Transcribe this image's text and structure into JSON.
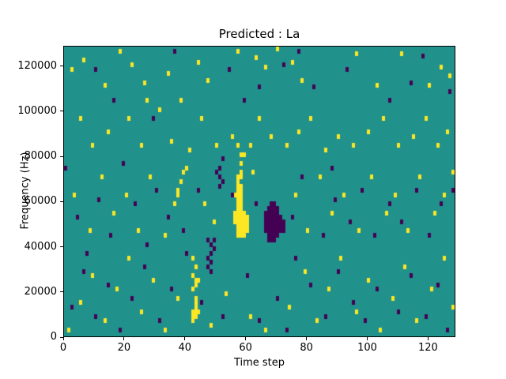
{
  "figure": {
    "title": "Predicted : La",
    "xlabel": "Time step",
    "ylabel": "Frequency (Hz)"
  },
  "chart_data": {
    "type": "heatmap",
    "title": "Predicted : La",
    "xlabel": "Time step",
    "ylabel": "Frequency (Hz)",
    "xlim": [
      0,
      129
    ],
    "ylim": [
      0,
      129000
    ],
    "xticks": [
      0,
      20,
      40,
      60,
      80,
      100,
      120
    ],
    "yticks": [
      0,
      20000,
      40000,
      60000,
      80000,
      100000,
      120000
    ],
    "grid": false,
    "legend": "none",
    "cell": {
      "x_size": 1,
      "y_size": 2000
    },
    "colors": {
      "background": "#21918c",
      "high": "#fde725",
      "low": "#440154",
      "axis": "#000000"
    },
    "high_cells": [
      [
        56,
        50000
      ],
      [
        56,
        52000
      ],
      [
        56,
        54000
      ],
      [
        56,
        62000
      ],
      [
        57,
        44000
      ],
      [
        57,
        46000
      ],
      [
        57,
        48000
      ],
      [
        57,
        50000
      ],
      [
        57,
        52000
      ],
      [
        57,
        54000
      ],
      [
        57,
        56000
      ],
      [
        57,
        58000
      ],
      [
        57,
        60000
      ],
      [
        57,
        62000
      ],
      [
        57,
        64000
      ],
      [
        57,
        66000
      ],
      [
        57,
        68000
      ],
      [
        57,
        70000
      ],
      [
        57,
        84000
      ],
      [
        58,
        44000
      ],
      [
        58,
        46000
      ],
      [
        58,
        48000
      ],
      [
        58,
        50000
      ],
      [
        58,
        52000
      ],
      [
        58,
        54000
      ],
      [
        58,
        56000
      ],
      [
        58,
        58000
      ],
      [
        58,
        60000
      ],
      [
        58,
        62000
      ],
      [
        58,
        64000
      ],
      [
        58,
        66000
      ],
      [
        58,
        70000
      ],
      [
        58,
        72000
      ],
      [
        58,
        76000
      ],
      [
        58,
        80000
      ],
      [
        59,
        44000
      ],
      [
        59,
        46000
      ],
      [
        59,
        48000
      ],
      [
        59,
        50000
      ],
      [
        59,
        52000
      ],
      [
        59,
        54000
      ],
      [
        59,
        80000
      ],
      [
        60,
        46000
      ],
      [
        60,
        48000
      ],
      [
        60,
        50000
      ],
      [
        60,
        52000
      ],
      [
        42,
        6000
      ],
      [
        42,
        8000
      ],
      [
        42,
        10000
      ],
      [
        42,
        20000
      ],
      [
        42,
        26000
      ],
      [
        42,
        34000
      ],
      [
        43,
        8000
      ],
      [
        43,
        10000
      ],
      [
        43,
        12000
      ],
      [
        43,
        14000
      ],
      [
        43,
        16000
      ],
      [
        43,
        22000
      ],
      [
        43,
        24000
      ],
      [
        43,
        30000
      ],
      [
        44,
        10000
      ],
      [
        44,
        24000
      ],
      [
        36,
        58000
      ],
      [
        37,
        62000
      ],
      [
        37,
        64000
      ],
      [
        38,
        68000
      ],
      [
        39,
        72000
      ],
      [
        40,
        74000
      ],
      [
        2,
        118000
      ],
      [
        6,
        122000
      ],
      [
        13,
        111000
      ],
      [
        18,
        126000
      ],
      [
        22,
        120000
      ],
      [
        26,
        112000
      ],
      [
        34,
        116000
      ],
      [
        38,
        104000
      ],
      [
        44,
        121000
      ],
      [
        47,
        113000
      ],
      [
        57,
        126000
      ],
      [
        63,
        123000
      ],
      [
        66,
        119000
      ],
      [
        70,
        127000
      ],
      [
        75,
        121000
      ],
      [
        78,
        113000
      ],
      [
        96,
        125000
      ],
      [
        103,
        111000
      ],
      [
        111,
        125000
      ],
      [
        120,
        111000
      ],
      [
        124,
        119000
      ],
      [
        127,
        115000
      ],
      [
        5,
        96000
      ],
      [
        9,
        84000
      ],
      [
        14,
        90000
      ],
      [
        21,
        96000
      ],
      [
        25,
        84000
      ],
      [
        27,
        104000
      ],
      [
        31,
        100000
      ],
      [
        35,
        86000
      ],
      [
        41,
        82000
      ],
      [
        45,
        96000
      ],
      [
        50,
        84000
      ],
      [
        55,
        88000
      ],
      [
        61,
        84000
      ],
      [
        64,
        96000
      ],
      [
        68,
        88000
      ],
      [
        73,
        84000
      ],
      [
        77,
        90000
      ],
      [
        81,
        96000
      ],
      [
        86,
        82000
      ],
      [
        90,
        88000
      ],
      [
        95,
        84000
      ],
      [
        100,
        90000
      ],
      [
        105,
        96000
      ],
      [
        110,
        84000
      ],
      [
        115,
        88000
      ],
      [
        119,
        96000
      ],
      [
        123,
        84000
      ],
      [
        126,
        90000
      ],
      [
        3,
        62000
      ],
      [
        8,
        46000
      ],
      [
        12,
        70000
      ],
      [
        16,
        54000
      ],
      [
        20,
        62000
      ],
      [
        24,
        46000
      ],
      [
        28,
        70000
      ],
      [
        33,
        44000
      ],
      [
        46,
        58000
      ],
      [
        49,
        50000
      ],
      [
        62,
        72000
      ],
      [
        76,
        62000
      ],
      [
        80,
        46000
      ],
      [
        84,
        70000
      ],
      [
        88,
        54000
      ],
      [
        92,
        62000
      ],
      [
        97,
        46000
      ],
      [
        101,
        70000
      ],
      [
        106,
        54000
      ],
      [
        109,
        62000
      ],
      [
        113,
        46000
      ],
      [
        117,
        70000
      ],
      [
        122,
        54000
      ],
      [
        125,
        62000
      ],
      [
        128,
        72000
      ],
      [
        1,
        2000
      ],
      [
        5,
        14000
      ],
      [
        9,
        26000
      ],
      [
        13,
        6000
      ],
      [
        17,
        20000
      ],
      [
        21,
        34000
      ],
      [
        25,
        10000
      ],
      [
        29,
        24000
      ],
      [
        33,
        2000
      ],
      [
        37,
        16000
      ],
      [
        48,
        4000
      ],
      [
        53,
        18000
      ],
      [
        61,
        8000
      ],
      [
        66,
        2000
      ],
      [
        74,
        12000
      ],
      [
        79,
        28000
      ],
      [
        83,
        6000
      ],
      [
        87,
        20000
      ],
      [
        91,
        34000
      ],
      [
        96,
        10000
      ],
      [
        100,
        24000
      ],
      [
        104,
        2000
      ],
      [
        108,
        16000
      ],
      [
        112,
        30000
      ],
      [
        116,
        6000
      ],
      [
        121,
        20000
      ],
      [
        125,
        34000
      ],
      [
        128,
        12000
      ]
    ],
    "low_cells": [
      [
        66,
        46000
      ],
      [
        66,
        48000
      ],
      [
        66,
        50000
      ],
      [
        66,
        52000
      ],
      [
        66,
        54000
      ],
      [
        67,
        42000
      ],
      [
        67,
        44000
      ],
      [
        67,
        46000
      ],
      [
        67,
        48000
      ],
      [
        67,
        50000
      ],
      [
        67,
        52000
      ],
      [
        67,
        54000
      ],
      [
        67,
        56000
      ],
      [
        68,
        42000
      ],
      [
        68,
        44000
      ],
      [
        68,
        46000
      ],
      [
        68,
        48000
      ],
      [
        68,
        50000
      ],
      [
        68,
        52000
      ],
      [
        68,
        54000
      ],
      [
        68,
        56000
      ],
      [
        68,
        58000
      ],
      [
        69,
        42000
      ],
      [
        69,
        44000
      ],
      [
        69,
        46000
      ],
      [
        69,
        48000
      ],
      [
        69,
        50000
      ],
      [
        69,
        52000
      ],
      [
        69,
        54000
      ],
      [
        69,
        56000
      ],
      [
        69,
        58000
      ],
      [
        70,
        44000
      ],
      [
        70,
        46000
      ],
      [
        70,
        48000
      ],
      [
        70,
        50000
      ],
      [
        70,
        52000
      ],
      [
        70,
        54000
      ],
      [
        70,
        56000
      ],
      [
        71,
        46000
      ],
      [
        71,
        48000
      ],
      [
        71,
        50000
      ],
      [
        71,
        52000
      ],
      [
        72,
        46000
      ],
      [
        72,
        48000
      ],
      [
        72,
        50000
      ],
      [
        47,
        30000
      ],
      [
        47,
        34000
      ],
      [
        47,
        42000
      ],
      [
        48,
        28000
      ],
      [
        48,
        32000
      ],
      [
        48,
        36000
      ],
      [
        48,
        40000
      ],
      [
        49,
        38000
      ],
      [
        49,
        42000
      ],
      [
        50,
        72000
      ],
      [
        51,
        66000
      ],
      [
        51,
        70000
      ],
      [
        51,
        74000
      ],
      [
        52,
        68000
      ],
      [
        52,
        78000
      ],
      [
        10,
        118000
      ],
      [
        16,
        104000
      ],
      [
        29,
        96000
      ],
      [
        36,
        126000
      ],
      [
        54,
        118000
      ],
      [
        59,
        104000
      ],
      [
        64,
        110000
      ],
      [
        72,
        120000
      ],
      [
        77,
        126000
      ],
      [
        82,
        110000
      ],
      [
        93,
        118000
      ],
      [
        107,
        104000
      ],
      [
        114,
        112000
      ],
      [
        118,
        124000
      ],
      [
        127,
        108000
      ],
      [
        0,
        74000
      ],
      [
        4,
        52000
      ],
      [
        7,
        36000
      ],
      [
        11,
        60000
      ],
      [
        15,
        44000
      ],
      [
        19,
        76000
      ],
      [
        23,
        58000
      ],
      [
        27,
        40000
      ],
      [
        30,
        64000
      ],
      [
        34,
        52000
      ],
      [
        39,
        46000
      ],
      [
        44,
        64000
      ],
      [
        55,
        62000
      ],
      [
        63,
        58000
      ],
      [
        75,
        52000
      ],
      [
        78,
        70000
      ],
      [
        85,
        44000
      ],
      [
        88,
        74000
      ],
      [
        89,
        60000
      ],
      [
        94,
        50000
      ],
      [
        98,
        64000
      ],
      [
        102,
        44000
      ],
      [
        107,
        58000
      ],
      [
        111,
        50000
      ],
      [
        116,
        64000
      ],
      [
        120,
        44000
      ],
      [
        124,
        58000
      ],
      [
        128,
        64000
      ],
      [
        2,
        12000
      ],
      [
        6,
        28000
      ],
      [
        10,
        8000
      ],
      [
        14,
        22000
      ],
      [
        18,
        2000
      ],
      [
        22,
        16000
      ],
      [
        26,
        30000
      ],
      [
        31,
        6000
      ],
      [
        35,
        20000
      ],
      [
        40,
        36000
      ],
      [
        45,
        14000
      ],
      [
        52,
        8000
      ],
      [
        60,
        26000
      ],
      [
        64,
        6000
      ],
      [
        70,
        16000
      ],
      [
        73,
        2000
      ],
      [
        76,
        34000
      ],
      [
        81,
        22000
      ],
      [
        86,
        8000
      ],
      [
        90,
        28000
      ],
      [
        95,
        14000
      ],
      [
        99,
        6000
      ],
      [
        103,
        20000
      ],
      [
        110,
        10000
      ],
      [
        114,
        26000
      ],
      [
        119,
        8000
      ],
      [
        123,
        22000
      ],
      [
        126,
        2000
      ]
    ]
  }
}
